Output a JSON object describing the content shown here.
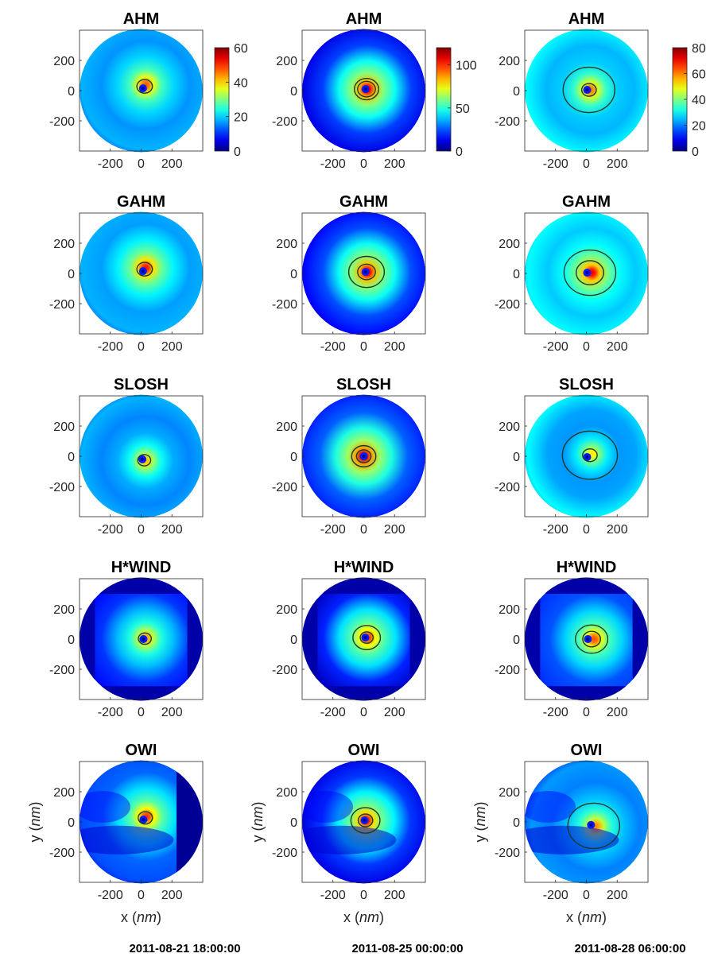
{
  "chart_data": {
    "type": "heatmap",
    "columns": [
      {
        "date": "2011-08-21 18:00:00",
        "colorbar": {
          "min": 0,
          "max": 60,
          "ticks": [
            0,
            20,
            40,
            60
          ]
        },
        "panels": [
          {
            "model": "AHM",
            "max": 48,
            "center": [
              12,
              15
            ],
            "peak_offset": [
              18,
              22
            ],
            "spread": 90,
            "ring": [
              [
                38,
                48
              ]
            ],
            "bg": 18,
            "hwind": false,
            "owi": false
          },
          {
            "model": "GAHM",
            "max": 52,
            "center": [
              12,
              15
            ],
            "peak_offset": [
              18,
              22
            ],
            "spread": 80,
            "ring": [
              [
                38,
                48
              ]
            ],
            "bg": 18,
            "hwind": false,
            "owi": false
          },
          {
            "model": "SLOSH",
            "max": 42,
            "center": [
              8,
              -20
            ],
            "peak_offset": [
              20,
              -10
            ],
            "spread": 110,
            "ring": [
              [
                30,
                40
              ]
            ],
            "bg": 18,
            "hwind": false,
            "owi": false
          },
          {
            "model": "H*WIND",
            "max": 44,
            "center": [
              15,
              0
            ],
            "peak_offset": [
              15,
              5
            ],
            "spread": 80,
            "ring": [
              [
                36,
                40
              ]
            ],
            "bg": 8,
            "hwind": true,
            "owi": false
          },
          {
            "model": "OWI",
            "max": 50,
            "center": [
              15,
              15
            ],
            "peak_offset": [
              20,
              20
            ],
            "spread": 90,
            "ring": [
              [
                38,
                44
              ]
            ],
            "bg": 12,
            "hwind": false,
            "owi": true
          }
        ]
      },
      {
        "date": "2011-08-25 00:00:00",
        "colorbar": {
          "min": 0,
          "max": 120,
          "ticks": [
            0,
            50,
            100
          ]
        },
        "panels": [
          {
            "model": "AHM",
            "max": 110,
            "center": [
              12,
              10
            ],
            "peak_offset": [
              10,
              0
            ],
            "spread": 70,
            "ring": [
              [
                60,
                75
              ],
              [
                90,
                55
              ]
            ],
            "bg": 12,
            "hwind": false,
            "owi": false
          },
          {
            "model": "GAHM",
            "max": 110,
            "center": [
              12,
              10
            ],
            "peak_offset": [
              10,
              0
            ],
            "spread": 90,
            "ring": [
              [
                60,
                55
              ],
              [
                90,
                110
              ]
            ],
            "bg": 15,
            "hwind": false,
            "owi": false
          },
          {
            "model": "SLOSH",
            "max": 115,
            "center": [
              0,
              0
            ],
            "peak_offset": [
              0,
              0
            ],
            "spread": 110,
            "ring": [
              [
                60,
                45
              ],
              [
                80,
                75
              ]
            ],
            "bg": 18,
            "hwind": false,
            "owi": false
          },
          {
            "model": "H*WIND",
            "max": 100,
            "center": [
              10,
              10
            ],
            "peak_offset": [
              15,
              0
            ],
            "spread": 80,
            "ring": [
              [
                60,
                40
              ],
              [
                80,
                85
              ]
            ],
            "bg": 8,
            "hwind": true,
            "owi": false
          },
          {
            "model": "OWI",
            "max": 105,
            "center": [
              5,
              10
            ],
            "peak_offset": [
              10,
              0
            ],
            "spread": 90,
            "ring": [
              [
                60,
                45
              ],
              [
                80,
                90
              ]
            ],
            "bg": 12,
            "hwind": false,
            "owi": true
          }
        ]
      },
      {
        "date": "2011-08-28 06:00:00",
        "colorbar": {
          "min": 0,
          "max": 80,
          "ticks": [
            0,
            20,
            40,
            60,
            80
          ]
        },
        "panels": [
          {
            "model": "AHM",
            "max": 62,
            "center": [
              5,
              5
            ],
            "peak_offset": [
              20,
              0
            ],
            "spread": 220,
            "ring": [
              [
                40,
                160
              ],
              [
                55,
                45
              ]
            ],
            "bg": 30,
            "hwind": false,
            "owi": false
          },
          {
            "model": "GAHM",
            "max": 72,
            "center": [
              5,
              5
            ],
            "peak_offset": [
              30,
              0
            ],
            "spread": 200,
            "ring": [
              [
                40,
                160
              ],
              [
                55,
                85
              ]
            ],
            "bg": 30,
            "hwind": false,
            "owi": false
          },
          {
            "model": "SLOSH",
            "max": 52,
            "center": [
              5,
              -5
            ],
            "peak_offset": [
              30,
              20
            ],
            "spread": 260,
            "ring": [
              [
                36,
                170
              ],
              [
                48,
                45
              ]
            ],
            "bg": 30,
            "hwind": false,
            "owi": false
          },
          {
            "model": "H*WIND",
            "max": 64,
            "center": [
              10,
              0
            ],
            "peak_offset": [
              40,
              0
            ],
            "spread": 120,
            "ring": [
              [
                40,
                100
              ],
              [
                52,
                55
              ]
            ],
            "bg": 14,
            "hwind": true,
            "owi": false
          },
          {
            "model": "OWI",
            "max": 60,
            "center": [
              30,
              -20
            ],
            "peak_offset": [
              30,
              -10
            ],
            "spread": 200,
            "ring": [
              [
                40,
                160
              ]
            ],
            "bg": 22,
            "hwind": false,
            "owi": true
          }
        ]
      }
    ],
    "x_ticks": [
      -200,
      0,
      200
    ],
    "y_ticks": [
      200,
      0,
      -200
    ],
    "axis_range": [
      -400,
      400
    ],
    "xlabel_prefix": "x (",
    "xlabel_unit": "nm",
    "xlabel_suffix": ")",
    "ylabel_prefix": "y (",
    "ylabel_unit": "nm",
    "ylabel_suffix": ")",
    "colormap": "jet"
  }
}
